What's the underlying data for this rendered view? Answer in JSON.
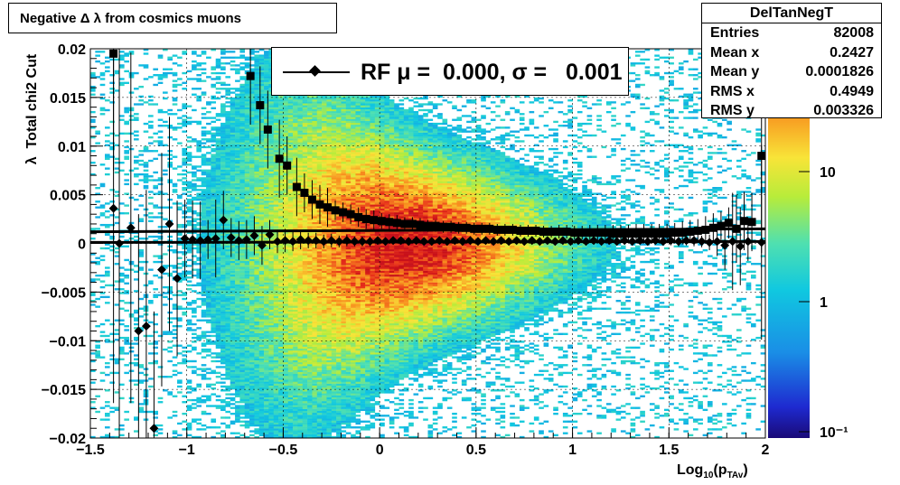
{
  "title": "Negative Δ λ from cosmics muons",
  "stats": {
    "name": "DelTanNegT",
    "rows": [
      {
        "label": "Entries",
        "value": "82008"
      },
      {
        "label": "Mean x",
        "value": "0.2427"
      },
      {
        "label": "Mean y",
        "value": "0.0001826"
      },
      {
        "label": "RMS x",
        "value": "0.4949"
      },
      {
        "label": "RMS y",
        "value": "0.003326"
      }
    ]
  },
  "legend": {
    "text": "RF μ =  0.000, σ =   0.001"
  },
  "chart_data": {
    "type": "heatmap",
    "xlabel": "Log10(pTAv)",
    "ylabel": "λ  Total chi2 Cut",
    "xlim": [
      -1.5,
      2.0
    ],
    "ylim": [
      -0.02,
      0.02
    ],
    "x_ticks": [
      "−1.5",
      "−1",
      "−0.5",
      "0",
      "0.5",
      "1",
      "1.5",
      "2"
    ],
    "y_ticks": [
      "−0.02",
      "−0.015",
      "−0.01",
      "−0.005",
      "0",
      "0.005",
      "0.01",
      "0.015",
      "0.02"
    ],
    "z_ticks": [
      "10⁻¹",
      "1",
      "10"
    ],
    "zscale": "log",
    "grid": true,
    "series": [
      {
        "marker": "square",
        "x": [
          -1.38,
          -0.67,
          -0.62,
          -0.58,
          -0.52,
          -0.48,
          -0.43,
          -0.39,
          -0.35,
          -0.31,
          -0.27,
          -0.23,
          -0.19,
          -0.15,
          -0.11,
          -0.07,
          -0.03,
          0.01,
          0.05,
          0.09,
          0.13,
          0.17,
          0.21,
          0.25,
          0.29,
          0.33,
          0.37,
          0.41,
          0.45,
          0.49,
          0.53,
          0.57,
          0.61,
          0.65,
          0.69,
          0.73,
          0.77,
          0.81,
          0.85,
          0.89,
          0.93,
          0.97,
          1.01,
          1.05,
          1.09,
          1.13,
          1.17,
          1.21,
          1.25,
          1.29,
          1.33,
          1.37,
          1.41,
          1.45,
          1.49,
          1.53,
          1.57,
          1.61,
          1.65,
          1.69,
          1.73,
          1.77,
          1.81,
          1.85,
          1.89,
          1.93,
          1.98
        ],
        "y": [
          0.0195,
          0.0172,
          0.0142,
          0.0117,
          0.0087,
          0.008,
          0.0058,
          0.0052,
          0.0045,
          0.004,
          0.0037,
          0.0034,
          0.0032,
          0.003,
          0.0027,
          0.0025,
          0.0024,
          0.0023,
          0.0022,
          0.0021,
          0.002,
          0.002,
          0.0019,
          0.0018,
          0.0018,
          0.0017,
          0.0017,
          0.0016,
          0.0016,
          0.0015,
          0.0015,
          0.0015,
          0.0014,
          0.0014,
          0.0014,
          0.0013,
          0.0013,
          0.0013,
          0.0012,
          0.0012,
          0.0012,
          0.0012,
          0.0011,
          0.0011,
          0.0011,
          0.0011,
          0.0011,
          0.001,
          0.001,
          0.001,
          0.001,
          0.001,
          0.001,
          0.001,
          0.001,
          0.0011,
          0.0011,
          0.0012,
          0.0013,
          0.0014,
          0.0016,
          0.0018,
          0.0021,
          0.0015,
          0.0023,
          0.0022,
          0.009
        ],
        "err": [
          0.012,
          0.005,
          0.004,
          0.004,
          0.004,
          0.003,
          0.003,
          0.002,
          0.002,
          0.002,
          0.002,
          0.001,
          0.001,
          0.001,
          0.001,
          0.001,
          0.001,
          0.0008,
          0.0008,
          0.0008,
          0.0007,
          0.0007,
          0.0007,
          0.0006,
          0.0006,
          0.0006,
          0.0006,
          0.0006,
          0.0006,
          0.0006,
          0.0006,
          0.0006,
          0.0006,
          0.0006,
          0.0006,
          0.0006,
          0.0006,
          0.0006,
          0.0006,
          0.0006,
          0.0007,
          0.0007,
          0.0007,
          0.0007,
          0.0008,
          0.0008,
          0.0008,
          0.0009,
          0.0009,
          0.0009,
          0.001,
          0.001,
          0.001,
          0.001,
          0.001,
          0.001,
          0.0012,
          0.0012,
          0.0012,
          0.0014,
          0.0015,
          0.0015,
          0.0016,
          0.0035,
          0.003,
          0.003,
          0.01
        ]
      },
      {
        "marker": "diamond",
        "x": [
          -1.38,
          -1.35,
          -1.29,
          -1.25,
          -1.21,
          -1.17,
          -1.13,
          -1.09,
          -1.05,
          -1.01,
          -0.97,
          -0.93,
          -0.89,
          -0.85,
          -0.81,
          -0.77,
          -0.73,
          -0.69,
          -0.65,
          -0.61,
          -0.57,
          -0.53,
          -0.49,
          -0.45,
          -0.41,
          -0.37,
          -0.33,
          -0.29,
          -0.25,
          -0.21,
          -0.17,
          -0.13,
          -0.09,
          -0.05,
          -0.01,
          0.03,
          0.07,
          0.11,
          0.15,
          0.19,
          0.23,
          0.27,
          0.31,
          0.35,
          0.39,
          0.43,
          0.47,
          0.51,
          0.55,
          0.59,
          0.63,
          0.67,
          0.71,
          0.75,
          0.79,
          0.83,
          0.87,
          0.91,
          0.95,
          0.99,
          1.03,
          1.07,
          1.11,
          1.15,
          1.19,
          1.23,
          1.27,
          1.31,
          1.35,
          1.39,
          1.43,
          1.47,
          1.51,
          1.55,
          1.59,
          1.63,
          1.67,
          1.71,
          1.75,
          1.79,
          1.83,
          1.87,
          1.91,
          1.98
        ],
        "y": [
          0.0036,
          0.0,
          0.0016,
          -0.009,
          -0.0085,
          -0.019,
          -0.0027,
          0.002,
          -0.0036,
          0.0005,
          0.0004,
          0.0003,
          0.0004,
          0.0005,
          0.0024,
          0.0006,
          0.0003,
          0.0004,
          0.0008,
          -0.0002,
          0.0009,
          0.0002,
          0.0003,
          0.0002,
          0.0004,
          0.0003,
          0.0003,
          0.0002,
          0.0003,
          0.0002,
          0.0003,
          0.0002,
          0.0002,
          0.0002,
          0.0003,
          0.0002,
          0.0003,
          0.0003,
          0.0002,
          0.0003,
          0.0002,
          0.0002,
          0.0003,
          0.0002,
          0.0003,
          0.0002,
          0.0003,
          0.0002,
          0.0003,
          0.0002,
          0.0003,
          0.0002,
          0.0003,
          0.0002,
          0.0003,
          0.0002,
          0.0003,
          0.0002,
          0.0003,
          0.0002,
          0.0003,
          0.0002,
          0.0003,
          0.0002,
          0.0003,
          0.0002,
          0.0003,
          0.0002,
          0.0003,
          0.0002,
          0.0003,
          0.0002,
          0.0003,
          0.0002,
          0.0003,
          0.0003,
          0.0002,
          0.0001,
          0.0002,
          -0.0002,
          0.0002,
          -0.0003,
          0.0002,
          0.0001
        ],
        "err": [
          0.02,
          0.02,
          0.018,
          0.012,
          0.014,
          0.012,
          0.012,
          0.011,
          0.008,
          0.004,
          0.004,
          0.004,
          0.002,
          0.004,
          0.003,
          0.002,
          0.002,
          0.002,
          0.002,
          0.002,
          0.0015,
          0.0012,
          0.0012,
          0.001,
          0.001,
          0.0008,
          0.0008,
          0.0007,
          0.0007,
          0.0006,
          0.0006,
          0.0005,
          0.0005,
          0.0005,
          0.0004,
          0.0004,
          0.0004,
          0.0004,
          0.0004,
          0.0004,
          0.0004,
          0.0004,
          0.0004,
          0.0004,
          0.0004,
          0.0004,
          0.0004,
          0.0004,
          0.0004,
          0.0004,
          0.0004,
          0.0004,
          0.0004,
          0.0004,
          0.0004,
          0.0004,
          0.0004,
          0.0004,
          0.0004,
          0.0004,
          0.0004,
          0.0004,
          0.0004,
          0.0004,
          0.0004,
          0.0004,
          0.0004,
          0.0004,
          0.0004,
          0.0004,
          0.0004,
          0.0004,
          0.0005,
          0.0005,
          0.0005,
          0.0006,
          0.0006,
          0.0008,
          0.0015,
          0.0025,
          0.005,
          0.004,
          0.002,
          0.01
        ]
      }
    ],
    "fit_lines": [
      {
        "x": [
          -1.5,
          2.0
        ],
        "y": [
          0.0012,
          0.0015
        ]
      },
      {
        "x": [
          -1.5,
          2.0
        ],
        "y": [
          0.0001,
          0.0002
        ]
      }
    ]
  }
}
